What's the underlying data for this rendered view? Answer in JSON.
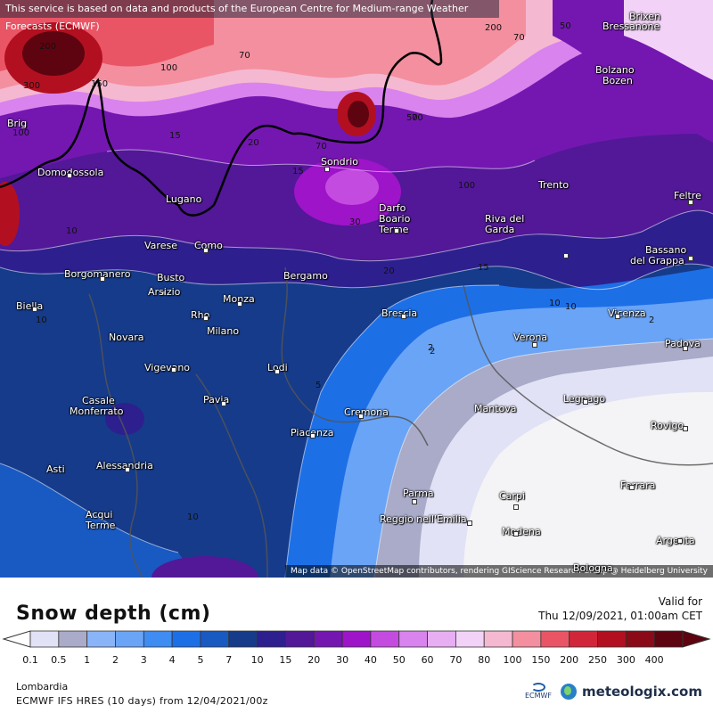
{
  "notice": "This service is based on data and products of the European Centre for Medium-range Weather Forecasts (ECMWF)",
  "attribution": "Map data © OpenStreetMap contributors, rendering GIScience Research Group @ Heidelberg University",
  "title": "Snow depth (cm)",
  "valid_label": "Valid for",
  "valid_time": "Thu 12/09/2021, 01:00am CET",
  "region": "Lombardia",
  "model_info": "ECMWF IFS HRES (10 days) from 12/04/2021/00z",
  "brand": "meteologix.com",
  "ecmwf_label": "ECMWF",
  "legend": {
    "ticks": [
      "0.1",
      "0.5",
      "1",
      "2",
      "3",
      "4",
      "5",
      "7",
      "10",
      "15",
      "20",
      "30",
      "40",
      "50",
      "60",
      "70",
      "80",
      "100",
      "150",
      "200",
      "250",
      "300",
      "400"
    ],
    "colors": [
      "#e2e2f6",
      "#a9abc9",
      "#8ab4f8",
      "#6aa4f6",
      "#3f8cf2",
      "#1d6fe6",
      "#1959c2",
      "#163b8a",
      "#2e1f8e",
      "#521897",
      "#7417b1",
      "#9e14c9",
      "#c44be0",
      "#d983ee",
      "#e8aef4",
      "#f2d3f7",
      "#f5b8d1",
      "#f38f9f",
      "#ea5566",
      "#d1263a",
      "#b21020",
      "#8a0a18",
      "#5e0410"
    ]
  },
  "cities": [
    {
      "name": "Brixen"
    },
    {
      "name": "Bressanone"
    },
    {
      "name": "Bolzano"
    },
    {
      "name": "Bozen"
    },
    {
      "name": "Brig"
    },
    {
      "name": "Domodossola"
    },
    {
      "name": "Sondrio"
    },
    {
      "name": "Trento"
    },
    {
      "name": "Feltre"
    },
    {
      "name": "Lugano"
    },
    {
      "name": "Darfo"
    },
    {
      "name": "Boario"
    },
    {
      "name": "Terme"
    },
    {
      "name": "Riva del"
    },
    {
      "name": "Garda"
    },
    {
      "name": "Varese"
    },
    {
      "name": "Como"
    },
    {
      "name": "Bassano"
    },
    {
      "name": "del Grappa"
    },
    {
      "name": "Borgomanero"
    },
    {
      "name": "Busto"
    },
    {
      "name": "Arsizio"
    },
    {
      "name": "Bergamo"
    },
    {
      "name": "Biella"
    },
    {
      "name": "Monza"
    },
    {
      "name": "Brescia"
    },
    {
      "name": "Vicenza"
    },
    {
      "name": "Rho"
    },
    {
      "name": "Novara"
    },
    {
      "name": "Milano"
    },
    {
      "name": "Verona"
    },
    {
      "name": "Padova"
    },
    {
      "name": "Vigevano"
    },
    {
      "name": "Lodi"
    },
    {
      "name": "Casale"
    },
    {
      "name": "Monferrato"
    },
    {
      "name": "Pavia"
    },
    {
      "name": "Legnago"
    },
    {
      "name": "Cremona"
    },
    {
      "name": "Mantova"
    },
    {
      "name": "Piacenza"
    },
    {
      "name": "Rovigo"
    },
    {
      "name": "Asti"
    },
    {
      "name": "Alessandria"
    },
    {
      "name": "Parma"
    },
    {
      "name": "Carpi"
    },
    {
      "name": "Ferrara"
    },
    {
      "name": "Acqui"
    },
    {
      "name": "Terme"
    },
    {
      "name": "Reggio nell'Emilia"
    },
    {
      "name": "Modena"
    },
    {
      "name": "Argenta"
    },
    {
      "name": "Bologna"
    }
  ],
  "contour_labels": [
    "200",
    "300",
    "150",
    "100",
    "100",
    "70",
    "200",
    "70",
    "50",
    "70",
    "50",
    "20",
    "15",
    "70",
    "100",
    "30",
    "15",
    "10",
    "10",
    "20",
    "15",
    "10",
    "2",
    "5",
    "2",
    "2",
    "10",
    "10"
  ]
}
